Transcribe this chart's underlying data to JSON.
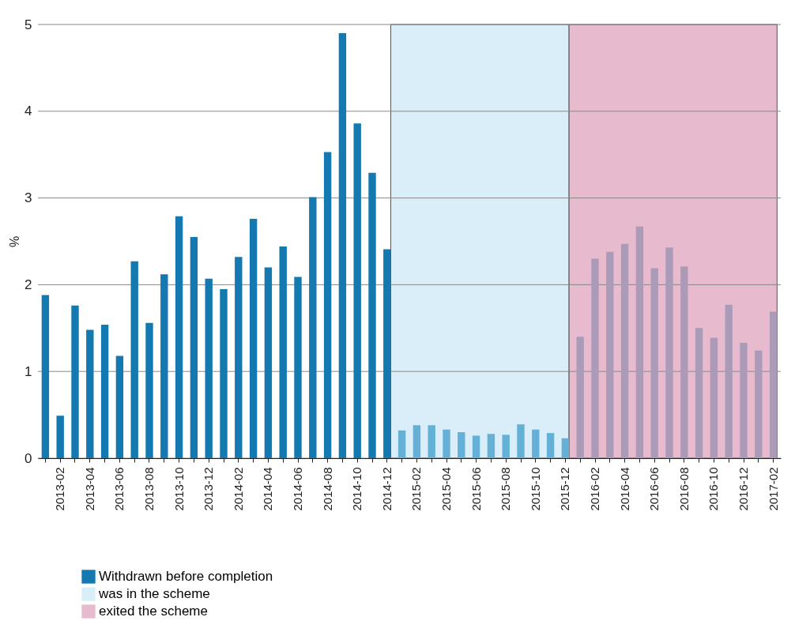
{
  "chart_data": {
    "type": "bar",
    "ylabel": "%",
    "categories": [
      null,
      "2013-02",
      null,
      "2013-04",
      null,
      "2013-06",
      null,
      "2013-08",
      null,
      "2013-10",
      null,
      "2013-12",
      null,
      "2014-02",
      null,
      "2014-04",
      null,
      "2014-06",
      null,
      "2014-08",
      null,
      "2014-10",
      null,
      "2014-12",
      null,
      "2015-02",
      null,
      "2015-04",
      null,
      "2015-06",
      null,
      "2015-08",
      null,
      "2015-10",
      null,
      "2015-12",
      null,
      "2016-02",
      null,
      "2016-04",
      null,
      "2016-06",
      null,
      "2016-08",
      null,
      "2016-10",
      null,
      "2016-12",
      null,
      "2017-02"
    ],
    "series": [
      {
        "name": "Withdrawn before completion",
        "color": "#1379b0",
        "values": [
          1.88,
          0.49,
          1.76,
          1.48,
          1.54,
          1.18,
          2.27,
          1.56,
          2.12,
          2.79,
          2.55,
          2.07,
          1.95,
          2.32,
          2.76,
          2.2,
          2.44,
          2.09,
          3.01,
          3.53,
          4.9,
          3.86,
          3.29,
          2.41,
          0.32,
          0.38,
          0.38,
          0.33,
          0.3,
          0.26,
          0.28,
          0.27,
          0.39,
          0.33,
          0.29,
          0.23,
          1.4,
          2.3,
          2.38,
          2.47,
          2.67,
          2.19,
          2.43,
          2.21,
          1.5,
          1.39,
          1.77,
          1.33,
          1.24,
          1.69
        ],
        "colors": [
          "#1379b0",
          "#1379b0",
          "#1379b0",
          "#1379b0",
          "#1379b0",
          "#1379b0",
          "#1379b0",
          "#1379b0",
          "#1379b0",
          "#1379b0",
          "#1379b0",
          "#1379b0",
          "#1379b0",
          "#1379b0",
          "#1379b0",
          "#1379b0",
          "#1379b0",
          "#1379b0",
          "#1379b0",
          "#1379b0",
          "#1379b0",
          "#1379b0",
          "#1379b0",
          "#1379b0",
          "#64b0d6",
          "#64b0d6",
          "#64b0d6",
          "#64b0d6",
          "#64b0d6",
          "#64b0d6",
          "#64b0d6",
          "#64b0d6",
          "#64b0d6",
          "#64b0d6",
          "#64b0d6",
          "#64b0d6",
          "#ab9bb9",
          "#ab9bb9",
          "#ab9bb9",
          "#ab9bb9",
          "#ab9bb9",
          "#ab9bb9",
          "#ab9bb9",
          "#ab9bb9",
          "#ab9bb9",
          "#ab9bb9",
          "#ab9bb9",
          "#ab9bb9",
          "#ab9bb9",
          "#ab9bb9"
        ]
      }
    ],
    "bands": [
      {
        "axis": "x",
        "from": "2014-12",
        "to": "2015-12",
        "label": "was in the scheme",
        "color": "#d9eef9"
      },
      {
        "axis": "x",
        "from": "2015-12",
        "to": "2017-02",
        "label": "exited the scheme",
        "color": "#e8bacd"
      }
    ],
    "ylim": [
      0,
      5
    ],
    "yticks": [
      0,
      1,
      2,
      3,
      4,
      5
    ],
    "grid": "y",
    "legend": "bottom left"
  }
}
